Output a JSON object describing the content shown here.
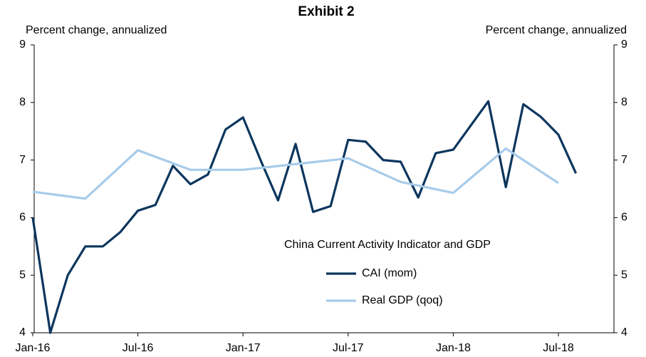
{
  "chart_data": {
    "type": "line",
    "title": "Exhibit 2",
    "y_label": "Percent change, annualized",
    "y2_label": "Percent change, annualized",
    "legend_title": "China Current Activity Indicator and GDP",
    "categories": [
      "Jan-16",
      null,
      null,
      null,
      null,
      null,
      "Jul-16",
      null,
      null,
      null,
      null,
      null,
      "Jan-17",
      null,
      null,
      null,
      null,
      null,
      "Jul-17",
      null,
      null,
      null,
      null,
      null,
      "Jan-18",
      null,
      null,
      null,
      null,
      null,
      "Jul-18",
      null,
      null
    ],
    "series": [
      {
        "name": "CAI (mom)",
        "color": "#0c365e",
        "values": [
          6.0,
          4.0,
          5.0,
          5.5,
          5.5,
          5.75,
          6.12,
          6.22,
          6.9,
          6.58,
          6.75,
          7.53,
          7.74,
          7.0,
          6.3,
          7.28,
          6.1,
          6.2,
          7.35,
          7.32,
          7.0,
          6.97,
          6.35,
          7.12,
          7.18,
          7.6,
          8.02,
          6.53,
          7.97,
          7.75,
          7.44,
          6.77,
          null
        ]
      },
      {
        "name": "Real GDP (qoq)",
        "color": "#a7cbea",
        "x": [
          "Jan-16",
          "Apr-16",
          "Jul-16",
          "Oct-16",
          "Jan-17",
          "Apr-17",
          "Jul-17",
          "Oct-17",
          "Jan-18",
          "Apr-18",
          "Jul-18"
        ],
        "values": [
          6.45,
          6.33,
          7.17,
          6.83,
          6.83,
          6.93,
          7.03,
          6.62,
          6.43,
          7.2,
          6.6
        ]
      }
    ],
    "ylim": [
      4,
      9
    ],
    "yticks": [
      4,
      5,
      6,
      7,
      8,
      9
    ],
    "y2lim": [
      4,
      9
    ],
    "y2ticks": [
      4,
      5,
      6,
      7,
      8,
      9
    ],
    "grid": false
  }
}
